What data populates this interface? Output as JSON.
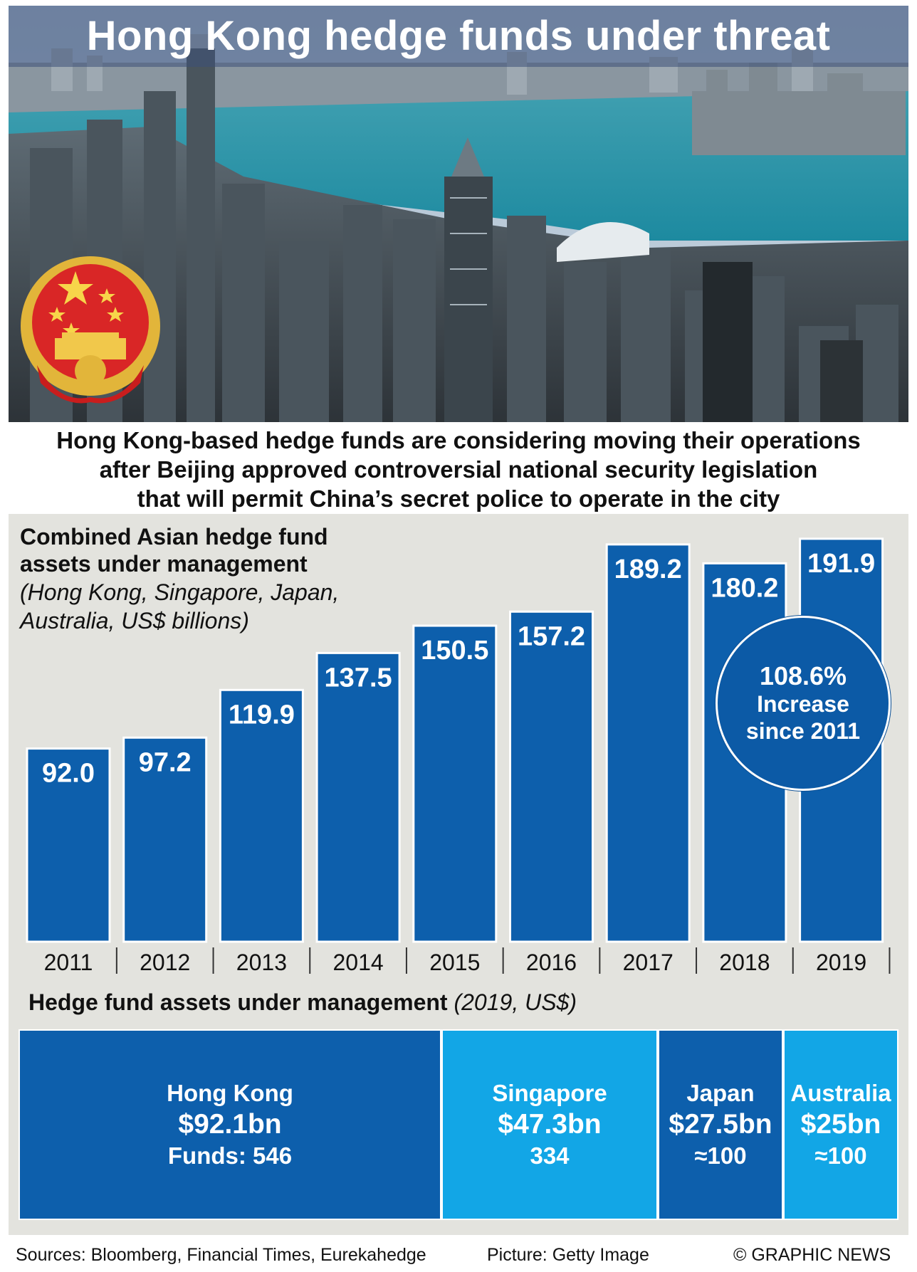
{
  "header": {
    "title": "Hong Kong hedge funds under threat",
    "subtitle_lines": [
      "Hong Kong-based hedge funds are considering moving their operations",
      "after Beijing approved controversial national security legislation",
      "that will permit China’s secret police to operate in the city"
    ]
  },
  "colors": {
    "bar": "#0d5fac",
    "tile_dark": "#0d5fac",
    "tile_light": "#12a6e6",
    "panel": "#e3e3de"
  },
  "chart_data": {
    "type": "bar",
    "title_lines": [
      "Combined Asian hedge fund",
      "assets under management"
    ],
    "subtitle_lines": [
      "(Hong Kong, Singapore, Japan,",
      "Australia, US$ billions)"
    ],
    "categories": [
      "2011",
      "2012",
      "2013",
      "2014",
      "2015",
      "2016",
      "2017",
      "2018",
      "2019"
    ],
    "values": [
      92.0,
      97.2,
      119.9,
      137.5,
      150.5,
      157.2,
      189.2,
      180.2,
      191.9
    ],
    "value_labels": [
      "92.0",
      "97.2",
      "119.9",
      "137.5",
      "150.5",
      "157.2",
      "189.2",
      "180.2",
      "191.9"
    ],
    "ylim": [
      0,
      200
    ],
    "grid": false,
    "legend": "none",
    "annotation": {
      "percent": "108.6%",
      "line1": "Increase",
      "line2": "since 2011"
    }
  },
  "assets": {
    "title": "Hedge fund assets under management",
    "title_note": "(2019, US$)",
    "tiles": [
      {
        "name": "Hong Kong",
        "value": "$92.1bn",
        "count": "Funds: 546",
        "amount_bn": 92.1
      },
      {
        "name": "Singapore",
        "value": "$47.3bn",
        "count": "334",
        "amount_bn": 47.3
      },
      {
        "name": "Japan",
        "value": "$27.5bn",
        "count": "≈100",
        "amount_bn": 27.5
      },
      {
        "name": "Australia",
        "value": "$25bn",
        "count": "≈100",
        "amount_bn": 25
      }
    ]
  },
  "footer": {
    "sources": "Sources: Bloomberg, Financial Times, Eurekahedge",
    "picture": "Picture: Getty Image",
    "credit": "© GRAPHIC NEWS"
  },
  "hero": {
    "emblem_icon": "chinese-national-emblem-icon",
    "photo": "hong-kong-skyline-aerial"
  }
}
